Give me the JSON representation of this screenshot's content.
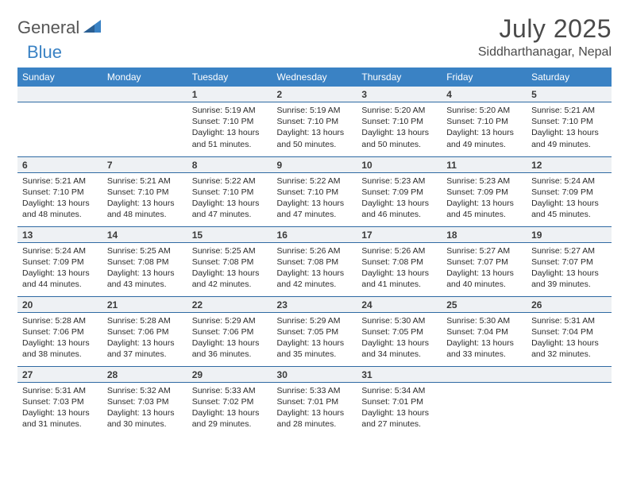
{
  "brand": {
    "part1": "General",
    "part2": "Blue"
  },
  "title": "July 2025",
  "location": "Siddharthanagar, Nepal",
  "colors": {
    "header_bg": "#3a82c4",
    "header_text": "#ffffff",
    "daynum_bg": "#eef1f4",
    "rule": "#2f6aa3",
    "body_text": "#2b2b2b",
    "title_text": "#4a4a4a"
  },
  "weekdays": [
    "Sunday",
    "Monday",
    "Tuesday",
    "Wednesday",
    "Thursday",
    "Friday",
    "Saturday"
  ],
  "first_weekday_index": 2,
  "days": [
    {
      "n": 1,
      "sunrise": "5:19 AM",
      "sunset": "7:10 PM",
      "daylight": "13 hours and 51 minutes."
    },
    {
      "n": 2,
      "sunrise": "5:19 AM",
      "sunset": "7:10 PM",
      "daylight": "13 hours and 50 minutes."
    },
    {
      "n": 3,
      "sunrise": "5:20 AM",
      "sunset": "7:10 PM",
      "daylight": "13 hours and 50 minutes."
    },
    {
      "n": 4,
      "sunrise": "5:20 AM",
      "sunset": "7:10 PM",
      "daylight": "13 hours and 49 minutes."
    },
    {
      "n": 5,
      "sunrise": "5:21 AM",
      "sunset": "7:10 PM",
      "daylight": "13 hours and 49 minutes."
    },
    {
      "n": 6,
      "sunrise": "5:21 AM",
      "sunset": "7:10 PM",
      "daylight": "13 hours and 48 minutes."
    },
    {
      "n": 7,
      "sunrise": "5:21 AM",
      "sunset": "7:10 PM",
      "daylight": "13 hours and 48 minutes."
    },
    {
      "n": 8,
      "sunrise": "5:22 AM",
      "sunset": "7:10 PM",
      "daylight": "13 hours and 47 minutes."
    },
    {
      "n": 9,
      "sunrise": "5:22 AM",
      "sunset": "7:10 PM",
      "daylight": "13 hours and 47 minutes."
    },
    {
      "n": 10,
      "sunrise": "5:23 AM",
      "sunset": "7:09 PM",
      "daylight": "13 hours and 46 minutes."
    },
    {
      "n": 11,
      "sunrise": "5:23 AM",
      "sunset": "7:09 PM",
      "daylight": "13 hours and 45 minutes."
    },
    {
      "n": 12,
      "sunrise": "5:24 AM",
      "sunset": "7:09 PM",
      "daylight": "13 hours and 45 minutes."
    },
    {
      "n": 13,
      "sunrise": "5:24 AM",
      "sunset": "7:09 PM",
      "daylight": "13 hours and 44 minutes."
    },
    {
      "n": 14,
      "sunrise": "5:25 AM",
      "sunset": "7:08 PM",
      "daylight": "13 hours and 43 minutes."
    },
    {
      "n": 15,
      "sunrise": "5:25 AM",
      "sunset": "7:08 PM",
      "daylight": "13 hours and 42 minutes."
    },
    {
      "n": 16,
      "sunrise": "5:26 AM",
      "sunset": "7:08 PM",
      "daylight": "13 hours and 42 minutes."
    },
    {
      "n": 17,
      "sunrise": "5:26 AM",
      "sunset": "7:08 PM",
      "daylight": "13 hours and 41 minutes."
    },
    {
      "n": 18,
      "sunrise": "5:27 AM",
      "sunset": "7:07 PM",
      "daylight": "13 hours and 40 minutes."
    },
    {
      "n": 19,
      "sunrise": "5:27 AM",
      "sunset": "7:07 PM",
      "daylight": "13 hours and 39 minutes."
    },
    {
      "n": 20,
      "sunrise": "5:28 AM",
      "sunset": "7:06 PM",
      "daylight": "13 hours and 38 minutes."
    },
    {
      "n": 21,
      "sunrise": "5:28 AM",
      "sunset": "7:06 PM",
      "daylight": "13 hours and 37 minutes."
    },
    {
      "n": 22,
      "sunrise": "5:29 AM",
      "sunset": "7:06 PM",
      "daylight": "13 hours and 36 minutes."
    },
    {
      "n": 23,
      "sunrise": "5:29 AM",
      "sunset": "7:05 PM",
      "daylight": "13 hours and 35 minutes."
    },
    {
      "n": 24,
      "sunrise": "5:30 AM",
      "sunset": "7:05 PM",
      "daylight": "13 hours and 34 minutes."
    },
    {
      "n": 25,
      "sunrise": "5:30 AM",
      "sunset": "7:04 PM",
      "daylight": "13 hours and 33 minutes."
    },
    {
      "n": 26,
      "sunrise": "5:31 AM",
      "sunset": "7:04 PM",
      "daylight": "13 hours and 32 minutes."
    },
    {
      "n": 27,
      "sunrise": "5:31 AM",
      "sunset": "7:03 PM",
      "daylight": "13 hours and 31 minutes."
    },
    {
      "n": 28,
      "sunrise": "5:32 AM",
      "sunset": "7:03 PM",
      "daylight": "13 hours and 30 minutes."
    },
    {
      "n": 29,
      "sunrise": "5:33 AM",
      "sunset": "7:02 PM",
      "daylight": "13 hours and 29 minutes."
    },
    {
      "n": 30,
      "sunrise": "5:33 AM",
      "sunset": "7:01 PM",
      "daylight": "13 hours and 28 minutes."
    },
    {
      "n": 31,
      "sunrise": "5:34 AM",
      "sunset": "7:01 PM",
      "daylight": "13 hours and 27 minutes."
    }
  ],
  "labels": {
    "sunrise": "Sunrise:",
    "sunset": "Sunset:",
    "daylight": "Daylight:"
  }
}
